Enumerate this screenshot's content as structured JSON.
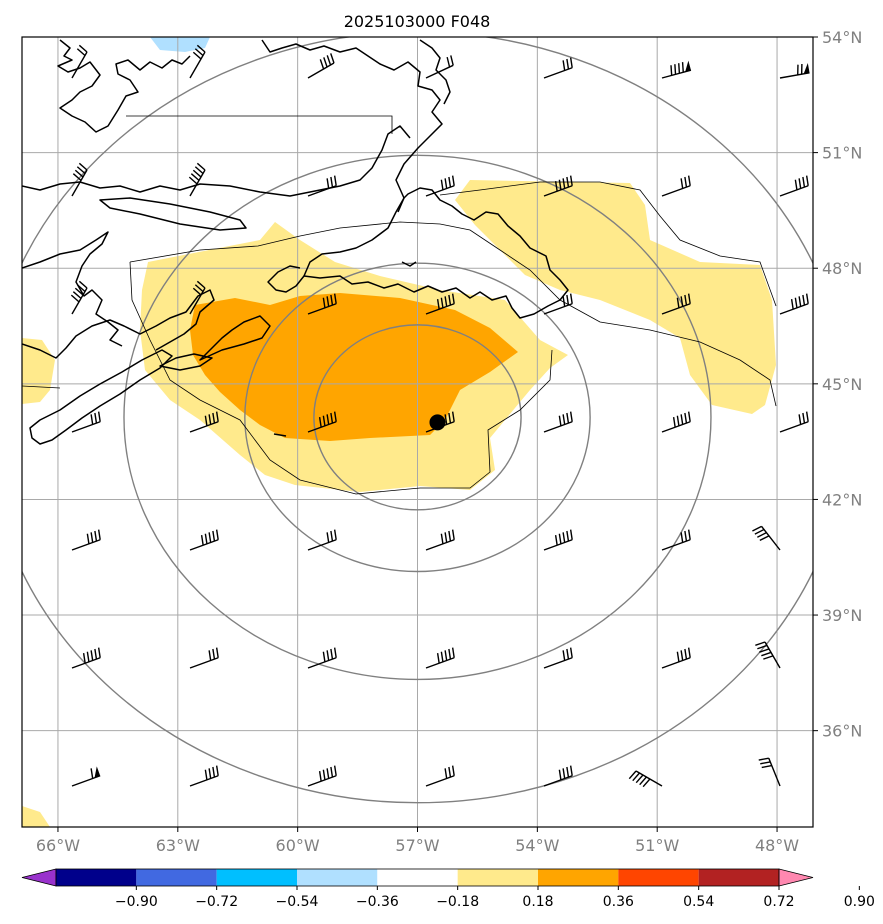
{
  "title": "2025103000 F048",
  "map": {
    "lon_range": [
      -66.9,
      -47.1
    ],
    "lat_range": [
      33.5,
      54.0
    ],
    "x_ticks": [
      {
        "lon": -66,
        "label": "66°W"
      },
      {
        "lon": -63,
        "label": "63°W"
      },
      {
        "lon": -60,
        "label": "60°W"
      },
      {
        "lon": -57,
        "label": "57°W"
      },
      {
        "lon": -54,
        "label": "54°W"
      },
      {
        "lon": -51,
        "label": "51°W"
      },
      {
        "lon": -48,
        "label": "48°W"
      }
    ],
    "y_ticks": [
      {
        "lat": 54,
        "label": "54°N"
      },
      {
        "lat": 51,
        "label": "51°N"
      },
      {
        "lat": 48,
        "label": "48°N"
      },
      {
        "lat": 45,
        "label": "45°N"
      },
      {
        "lat": 42,
        "label": "42°N"
      },
      {
        "lat": 39,
        "label": "39°N"
      },
      {
        "lat": 36,
        "label": "36°N"
      }
    ],
    "center_marker": {
      "lon": -56.5,
      "lat": 44.0
    },
    "range_rings_deg": [
      2.4,
      4.0,
      6.8,
      10.0
    ]
  },
  "colorbar": {
    "ticks": [
      "−0.90",
      "−0.72",
      "−0.54",
      "−0.36",
      "−0.18",
      "0.18",
      "0.36",
      "0.54",
      "0.72",
      "0.90"
    ],
    "colors": [
      "#9932cc",
      "#00008b",
      "#4169e1",
      "#00bfff",
      "#b0e0ff",
      "#ffffff",
      "#ffea8c",
      "#ffa500",
      "#ff4500",
      "#b22222",
      "#ff88b0"
    ]
  }
}
